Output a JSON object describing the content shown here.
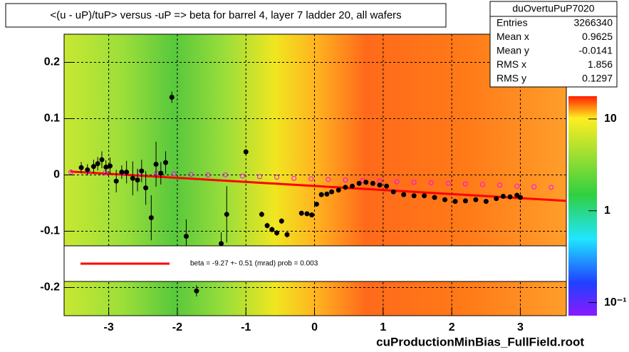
{
  "chart_data": {
    "type": "scatter",
    "title": "<(u - uP)/tuP> versus  -uP => beta for barrel 4, layer 7 ladder 20, all wafers",
    "footer": "cuProductionMinBias_FullField.root",
    "xlim": [
      -3.65,
      3.67
    ],
    "ylim": [
      -0.25,
      0.25
    ],
    "xticks": [
      -3,
      -2,
      -1,
      0,
      1,
      2,
      3
    ],
    "yticks": [
      -0.2,
      -0.1,
      0,
      0.1,
      0.2
    ],
    "grid": true,
    "zlim": [
      0.072,
      17.7
    ],
    "zlog": true,
    "zticks": [
      {
        "value": 10,
        "label": "10"
      },
      {
        "value": 1,
        "label": "1"
      },
      {
        "value": 0.1,
        "label": "10⁻¹"
      }
    ],
    "stats": {
      "name": "duOvertuPuP7020",
      "rows": [
        {
          "label": "Entries",
          "value": 3266340
        },
        {
          "label": "Mean x",
          "value": 0.9625
        },
        {
          "label": "Mean y",
          "value": -0.0141
        },
        {
          "label": "RMS x",
          "value": 1.856
        },
        {
          "label": "RMS y",
          "value": 0.1297
        }
      ]
    },
    "fit": {
      "label": "beta =   -9.27 +-  0.51 (mrad) prob = 0.003",
      "color": "#ff0000",
      "x": [
        -3.56,
        3.67
      ],
      "values": [
        0.006,
        -0.046
      ]
    },
    "series": [
      {
        "color": "#ff00ff",
        "x": [
          -3.55,
          -3.3,
          -3.05,
          -2.8,
          -2.55,
          -2.3,
          -2.05,
          -1.8,
          -1.55,
          -1.3,
          -1.05,
          -0.8,
          -0.55,
          -0.3,
          -0.05,
          0.2,
          0.45,
          0.7,
          0.95,
          1.2,
          1.45,
          1.7,
          1.95,
          2.2,
          2.45,
          2.7,
          2.95,
          3.2,
          3.45
        ],
        "values": [
          0.005,
          0.006,
          0.004,
          0.003,
          0.004,
          0.003,
          0.002,
          0.001,
          0.0,
          0.0,
          -0.002,
          -0.003,
          -0.004,
          -0.006,
          -0.007,
          -0.008,
          -0.009,
          -0.01,
          -0.011,
          -0.012,
          -0.013,
          -0.014,
          -0.015,
          -0.016,
          -0.017,
          -0.018,
          -0.02,
          -0.021,
          -0.022
        ]
      },
      {
        "color": "#000000",
        "x": [
          -3.4,
          -3.31,
          -3.22,
          -3.16,
          -3.1,
          -3.04,
          -2.98,
          -2.89,
          -2.81,
          -2.74,
          -2.65,
          -2.58,
          -2.52,
          -2.46,
          -2.38,
          -2.31,
          -2.24,
          -2.17,
          -2.08,
          -1.87,
          -1.72,
          -1.36,
          -1.28,
          -1.0,
          -0.77,
          -0.69,
          -0.62,
          -0.55,
          -0.48,
          -0.4,
          -0.19,
          -0.11,
          -0.04,
          0.03,
          0.1,
          0.18,
          0.25,
          0.35,
          0.45,
          0.55,
          0.65,
          0.75,
          0.85,
          0.95,
          1.05,
          1.15,
          1.3,
          1.45,
          1.6,
          1.75,
          1.9,
          2.05,
          2.2,
          2.35,
          2.5,
          2.65,
          2.75,
          2.85,
          2.95,
          3.0
        ],
        "values": [
          0.013,
          0.009,
          0.015,
          0.02,
          0.027,
          0.014,
          0.016,
          -0.011,
          0.005,
          0.005,
          -0.006,
          -0.009,
          0.007,
          -0.023,
          -0.076,
          0.019,
          0.003,
          0.022,
          0.138,
          -0.109,
          -0.206,
          -0.122,
          -0.07,
          0.041,
          -0.07,
          -0.09,
          -0.097,
          -0.103,
          -0.082,
          -0.106,
          -0.068,
          -0.069,
          -0.071,
          -0.052,
          -0.035,
          -0.034,
          -0.03,
          -0.027,
          -0.022,
          -0.02,
          -0.015,
          -0.013,
          -0.015,
          -0.018,
          -0.02,
          -0.03,
          -0.035,
          -0.037,
          -0.037,
          -0.04,
          -0.044,
          -0.047,
          -0.046,
          -0.044,
          -0.047,
          -0.042,
          -0.038,
          -0.039,
          -0.036,
          -0.04
        ],
        "errors": [
          0.01,
          0.01,
          0.012,
          0.012,
          0.015,
          0.012,
          0.015,
          0.02,
          0.012,
          0.02,
          0.03,
          0.02,
          0.02,
          0.03,
          0.04,
          0.04,
          0.02,
          0.02,
          0.01,
          0.03,
          0.01,
          0.02,
          0.05,
          0.005,
          0.005,
          0.005,
          0.005,
          0.005,
          0.005,
          0.005,
          0.004,
          0.004,
          0.004,
          0.004,
          0.004,
          0.004,
          0.003,
          0.003,
          0.003,
          0.003,
          0.003,
          0.003,
          0.003,
          0.003,
          0.003,
          0.003,
          0.003,
          0.003,
          0.003,
          0.003,
          0.003,
          0.003,
          0.003,
          0.003,
          0.003,
          0.003,
          0.003,
          0.003,
          0.003,
          0.003
        ]
      }
    ]
  }
}
